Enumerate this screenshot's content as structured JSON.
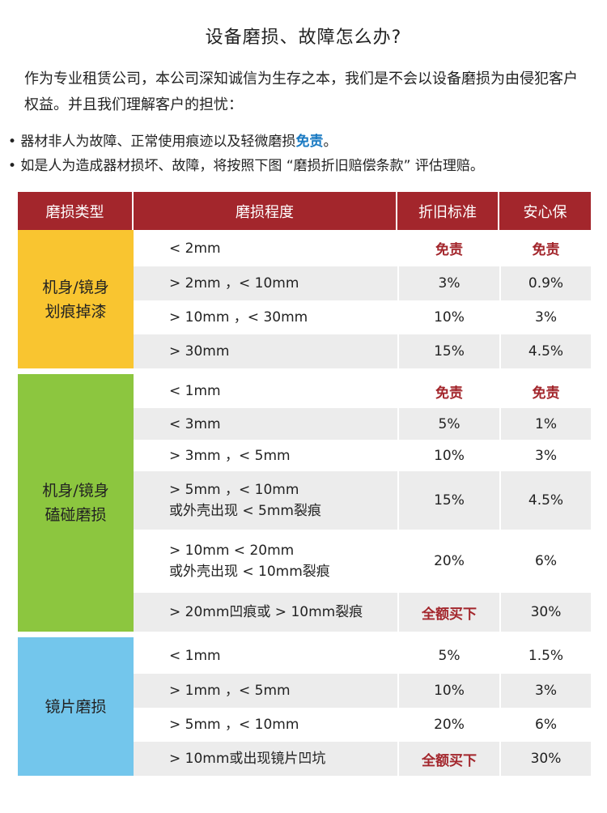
{
  "title": "设备磨损、故障怎么办?",
  "intro": "作为专业租赁公司，本公司深知诚信为生存之本，我们是不会以设备磨损为由侵犯客户权益。并且我们理解客户的担忧：",
  "bullets": [
    {
      "text": "• 器材非人为故障、正常使用痕迹以及轻微磨损",
      "highlight": "免责",
      "suffix": "。"
    },
    {
      "text": "• 如是人为造成器材损坏、故障，将按照下图 “磨损折旧赔偿条款” 评估理赔。",
      "highlight": "",
      "suffix": ""
    }
  ],
  "colors": {
    "header": "#a3262c",
    "group1": "#f9c530",
    "group2": "#8cc63f",
    "group3": "#73c6ec",
    "highlight": "#1a7ac2",
    "row_alt": "#ececec"
  },
  "table": {
    "headers": [
      "磨损类型",
      "磨损程度",
      "折旧标准",
      "安心保"
    ],
    "groups": [
      {
        "name": "机身/镜身\n划痕掉漆",
        "rows": [
          {
            "degree": [
              "< 2mm"
            ],
            "depreciation": "免责",
            "insurance": "免责"
          },
          {
            "degree": [
              "> 2mm ，< 10mm"
            ],
            "depreciation": "3%",
            "insurance": "0.9%"
          },
          {
            "degree": [
              "> 10mm ，< 30mm"
            ],
            "depreciation": "10%",
            "insurance": "3%"
          },
          {
            "degree": [
              "> 30mm"
            ],
            "depreciation": "15%",
            "insurance": "4.5%"
          }
        ]
      },
      {
        "name": "机身/镜身\n磕碰磨损",
        "rows": [
          {
            "degree": [
              "< 1mm"
            ],
            "depreciation": "免责",
            "insurance": "免责"
          },
          {
            "degree": [
              "< 3mm"
            ],
            "depreciation": "5%",
            "insurance": "1%"
          },
          {
            "degree": [
              "> 3mm ，< 5mm"
            ],
            "depreciation": "10%",
            "insurance": "3%"
          },
          {
            "degree": [
              "> 5mm ，< 10mm",
              "或外壳出现 < 5mm裂痕"
            ],
            "depreciation": "15%",
            "insurance": "4.5%"
          },
          {
            "degree": [
              "> 10mm  < 20mm",
              "或外壳出现 < 10mm裂痕"
            ],
            "depreciation": "20%",
            "insurance": "6%"
          },
          {
            "degree": [
              "> 20mm凹痕或 > 10mm裂痕"
            ],
            "depreciation": "全额买下",
            "insurance": "30%"
          }
        ]
      },
      {
        "name": "镜片磨损",
        "rows": [
          {
            "degree": [
              "< 1mm"
            ],
            "depreciation": "5%",
            "insurance": "1.5%"
          },
          {
            "degree": [
              "> 1mm ，< 5mm"
            ],
            "depreciation": "10%",
            "insurance": "3%"
          },
          {
            "degree": [
              "> 5mm ，< 10mm"
            ],
            "depreciation": "20%",
            "insurance": "6%"
          },
          {
            "degree": [
              "> 10mm或出现镜片凹坑"
            ],
            "depreciation": "全额买下",
            "insurance": "30%"
          }
        ]
      }
    ]
  }
}
